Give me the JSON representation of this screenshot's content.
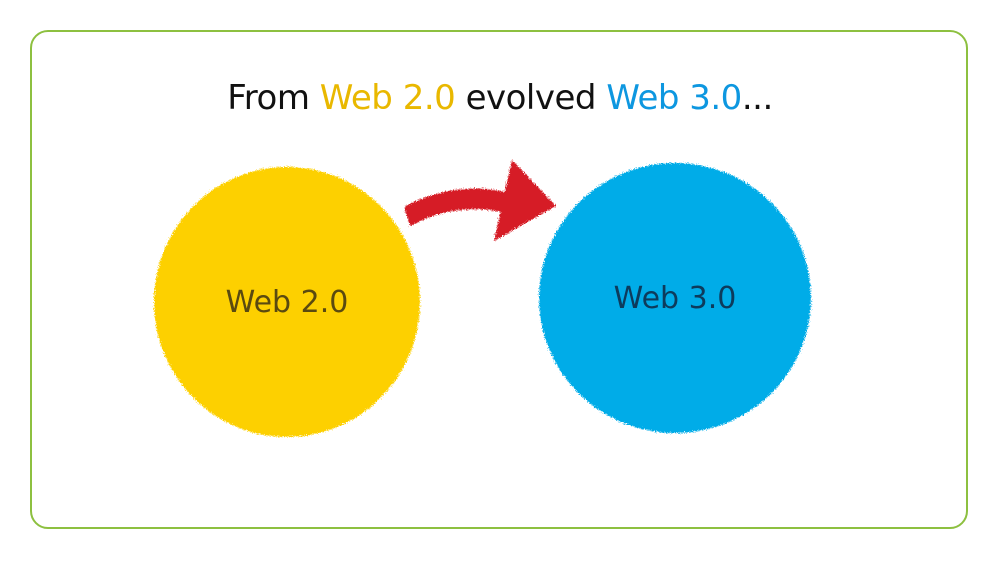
{
  "title": {
    "prefix": "From ",
    "from_term": "Web 2.0",
    "middle": " evolved ",
    "to_term": "Web 3.0",
    "suffix": "..."
  },
  "nodes": [
    {
      "label": "Web 2.0",
      "fill": "#fdd000",
      "text_color": "#5a4a10"
    },
    {
      "label": "Web 3.0",
      "fill": "#04ace8",
      "text_color": "#0d3b5c"
    }
  ],
  "arrow": {
    "color": "#d61f26",
    "icon": "curved-arrow-right-icon"
  },
  "colors": {
    "frame_border": "#8dc040",
    "from_term": "#e9b800",
    "to_term": "#0d97e0"
  }
}
